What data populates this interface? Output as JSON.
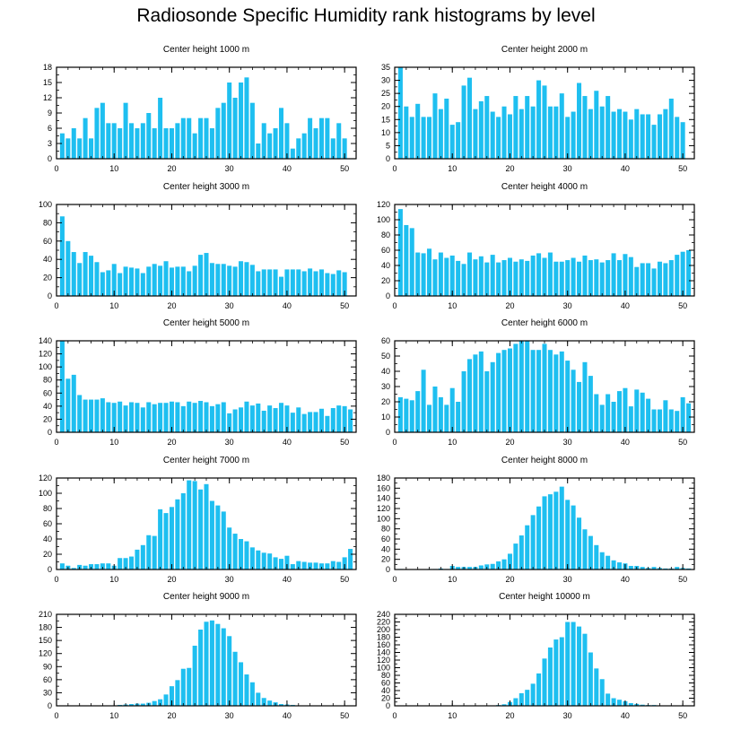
{
  "title": "Radiosonde Specific Humidity rank histograms by level",
  "colors": {
    "bar": "#1ebff0",
    "axis": "#000000",
    "background": "#ffffff"
  },
  "chart_data": [
    {
      "type": "bar",
      "title": "Center height 1000 m",
      "xlim": [
        0,
        52
      ],
      "ylim": [
        0,
        18
      ],
      "xticks": [
        0,
        10,
        20,
        30,
        40,
        50
      ],
      "yticks": [
        0,
        3,
        6,
        9,
        12,
        15,
        18
      ],
      "values": [
        5,
        4,
        6,
        4,
        8,
        4,
        10,
        11,
        7,
        7,
        6,
        11,
        7,
        6,
        7,
        9,
        6,
        12,
        6,
        6,
        7,
        8,
        8,
        5,
        8,
        8,
        6,
        10,
        11,
        15,
        12,
        15,
        16,
        11,
        3,
        7,
        5,
        6,
        10,
        7,
        2,
        4,
        5,
        8,
        6,
        8,
        8,
        4,
        7,
        4
      ]
    },
    {
      "type": "bar",
      "title": "Center height 2000 m",
      "xlim": [
        0,
        52
      ],
      "ylim": [
        0,
        35
      ],
      "xticks": [
        0,
        10,
        20,
        30,
        40,
        50
      ],
      "yticks": [
        0,
        5,
        10,
        15,
        20,
        25,
        30,
        35
      ],
      "values": [
        35,
        20,
        16,
        21,
        16,
        16,
        25,
        19,
        23,
        13,
        14,
        28,
        31,
        19,
        22,
        24,
        18,
        16,
        20,
        17,
        24,
        19,
        24,
        20,
        30,
        28,
        20,
        20,
        25,
        16,
        18,
        29,
        24,
        19,
        26,
        20,
        24,
        18,
        19,
        18,
        15,
        19,
        17,
        17,
        13,
        17,
        19,
        23,
        16,
        14
      ]
    },
    {
      "type": "bar",
      "title": "Center height 3000 m",
      "xlim": [
        0,
        52
      ],
      "ylim": [
        0,
        100
      ],
      "xticks": [
        0,
        10,
        20,
        30,
        40,
        50
      ],
      "yticks": [
        0,
        20,
        40,
        60,
        80,
        100
      ],
      "values": [
        87,
        60,
        48,
        36,
        48,
        44,
        37,
        26,
        28,
        35,
        25,
        32,
        31,
        30,
        25,
        32,
        35,
        33,
        38,
        31,
        32,
        32,
        27,
        33,
        45,
        47,
        36,
        35,
        35,
        33,
        32,
        38,
        37,
        34,
        27,
        29,
        29,
        29,
        21,
        29,
        29,
        29,
        27,
        30,
        27,
        29,
        25,
        24,
        28,
        26
      ]
    },
    {
      "type": "bar",
      "title": "Center height 4000 m",
      "xlim": [
        0,
        52
      ],
      "ylim": [
        0,
        120
      ],
      "xticks": [
        0,
        10,
        20,
        30,
        40,
        50
      ],
      "yticks": [
        0,
        20,
        40,
        60,
        80,
        100,
        120
      ],
      "values": [
        114,
        93,
        89,
        57,
        56,
        62,
        48,
        57,
        50,
        53,
        46,
        42,
        57,
        48,
        52,
        44,
        54,
        44,
        47,
        50,
        45,
        48,
        46,
        53,
        56,
        50,
        57,
        45,
        45,
        47,
        50,
        45,
        53,
        47,
        48,
        44,
        47,
        56,
        47,
        55,
        51,
        38,
        43,
        43,
        36,
        45,
        43,
        47,
        54,
        58,
        60
      ]
    },
    {
      "type": "bar",
      "title": "Center height 5000 m",
      "xlim": [
        0,
        52
      ],
      "ylim": [
        0,
        140
      ],
      "xticks": [
        0,
        10,
        20,
        30,
        40,
        50
      ],
      "yticks": [
        0,
        20,
        40,
        60,
        80,
        100,
        120,
        140
      ],
      "values": [
        140,
        82,
        88,
        57,
        50,
        50,
        50,
        52,
        46,
        45,
        47,
        41,
        46,
        45,
        38,
        46,
        43,
        45,
        45,
        47,
        46,
        40,
        47,
        45,
        48,
        46,
        40,
        43,
        46,
        29,
        35,
        38,
        47,
        41,
        44,
        33,
        41,
        37,
        45,
        41,
        30,
        38,
        28,
        31,
        31,
        36,
        25,
        37,
        41,
        40,
        35
      ]
    },
    {
      "type": "bar",
      "title": "Center height 6000 m",
      "xlim": [
        0,
        52
      ],
      "ylim": [
        0,
        60
      ],
      "xticks": [
        0,
        10,
        20,
        30,
        40,
        50
      ],
      "yticks": [
        0,
        10,
        20,
        30,
        40,
        50,
        60
      ],
      "values": [
        23,
        22,
        21,
        27,
        41,
        18,
        30,
        23,
        18,
        29,
        20,
        40,
        48,
        51,
        53,
        40,
        46,
        52,
        54,
        55,
        58,
        60,
        60,
        54,
        54,
        58,
        54,
        51,
        53,
        47,
        41,
        33,
        46,
        37,
        25,
        18,
        25,
        20,
        27,
        29,
        17,
        28,
        26,
        22,
        15,
        15,
        21,
        15,
        14,
        23,
        19
      ]
    },
    {
      "type": "bar",
      "title": "Center height 7000 m",
      "xlim": [
        0,
        52
      ],
      "ylim": [
        0,
        120
      ],
      "xticks": [
        0,
        10,
        20,
        30,
        40,
        50
      ],
      "yticks": [
        0,
        20,
        40,
        60,
        80,
        100,
        120
      ],
      "values": [
        8,
        5,
        2,
        6,
        5,
        7,
        7,
        8,
        8,
        5,
        15,
        15,
        17,
        26,
        32,
        45,
        44,
        79,
        74,
        82,
        92,
        100,
        117,
        116,
        105,
        112,
        90,
        84,
        76,
        55,
        47,
        40,
        37,
        29,
        25,
        22,
        21,
        16,
        14,
        18,
        7,
        11,
        10,
        9,
        9,
        8,
        8,
        11,
        10,
        16,
        27
      ]
    },
    {
      "type": "bar",
      "title": "Center height 8000 m",
      "xlim": [
        0,
        52
      ],
      "ylim": [
        0,
        180
      ],
      "xticks": [
        0,
        10,
        20,
        30,
        40,
        50
      ],
      "yticks": [
        0,
        20,
        40,
        60,
        80,
        100,
        120,
        140,
        160,
        180
      ],
      "values": [
        1,
        0,
        0,
        0,
        0,
        1,
        1,
        2,
        1,
        7,
        5,
        5,
        5,
        5,
        8,
        10,
        11,
        16,
        20,
        31,
        51,
        67,
        87,
        107,
        124,
        144,
        148,
        153,
        163,
        137,
        126,
        102,
        79,
        66,
        48,
        34,
        27,
        18,
        14,
        12,
        7,
        7,
        5,
        3,
        5,
        3,
        2,
        2,
        5,
        3,
        2
      ]
    },
    {
      "type": "bar",
      "title": "Center height 9000 m",
      "xlim": [
        0,
        52
      ],
      "ylim": [
        0,
        210
      ],
      "xticks": [
        0,
        10,
        20,
        30,
        40,
        50
      ],
      "yticks": [
        0,
        30,
        60,
        90,
        120,
        150,
        180,
        210
      ],
      "values": [
        0,
        0,
        0,
        0,
        0,
        0,
        0,
        0,
        0,
        1,
        2,
        3,
        4,
        5,
        5,
        7,
        11,
        15,
        26,
        45,
        59,
        85,
        87,
        138,
        175,
        193,
        196,
        188,
        178,
        160,
        124,
        100,
        72,
        54,
        30,
        18,
        12,
        8,
        4,
        3,
        2,
        1,
        1,
        1,
        0,
        1,
        0,
        0,
        0,
        0,
        0
      ]
    },
    {
      "type": "bar",
      "title": "Center height 10000 m",
      "xlim": [
        0,
        52
      ],
      "ylim": [
        0,
        240
      ],
      "xticks": [
        0,
        10,
        20,
        30,
        40,
        50
      ],
      "yticks": [
        0,
        20,
        40,
        60,
        80,
        100,
        120,
        140,
        160,
        180,
        200,
        220,
        240
      ],
      "values": [
        0,
        0,
        0,
        0,
        0,
        0,
        0,
        0,
        0,
        0,
        0,
        0,
        0,
        0,
        0,
        0,
        0,
        2,
        4,
        10,
        20,
        33,
        42,
        58,
        85,
        124,
        153,
        174,
        180,
        220,
        220,
        208,
        189,
        140,
        98,
        70,
        32,
        20,
        16,
        12,
        7,
        5,
        3,
        2,
        2,
        1,
        0,
        0,
        0,
        0,
        0
      ]
    }
  ]
}
